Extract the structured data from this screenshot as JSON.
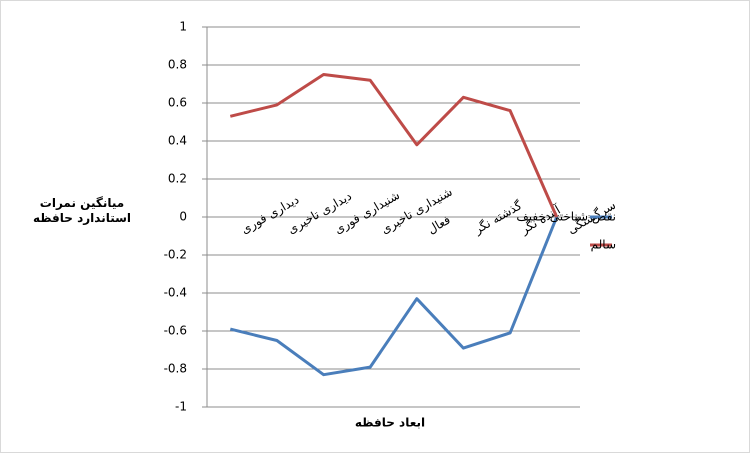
{
  "chart_data": {
    "type": "line",
    "y_label": "میانگین نمرات استاندارد حافظه",
    "x_label": "ابعاد حافظه",
    "categories": [
      "دیداری فوری",
      "دیداری تاخیری",
      "شنیداری فوری",
      "شنیداری تاخیری",
      "فعال",
      "گذشته نگر",
      "آینده نگر",
      "سرگشتگی"
    ],
    "series": [
      {
        "name": "نقص شناختی خفیف",
        "color": "#4a7ebb",
        "values": [
          -0.59,
          -0.65,
          -0.83,
          -0.79,
          -0.43,
          -0.69,
          -0.61,
          0.0
        ]
      },
      {
        "name": "سالم",
        "color": "#be4b48",
        "values": [
          0.53,
          0.59,
          0.75,
          0.72,
          0.38,
          0.63,
          0.56,
          0.0
        ]
      }
    ],
    "ylim": [
      -1,
      1
    ],
    "yticks": [
      -1,
      -0.8,
      -0.6,
      -0.4,
      -0.2,
      0,
      0.2,
      0.4,
      0.6,
      0.8,
      1
    ],
    "grid": true,
    "legend": "right"
  }
}
